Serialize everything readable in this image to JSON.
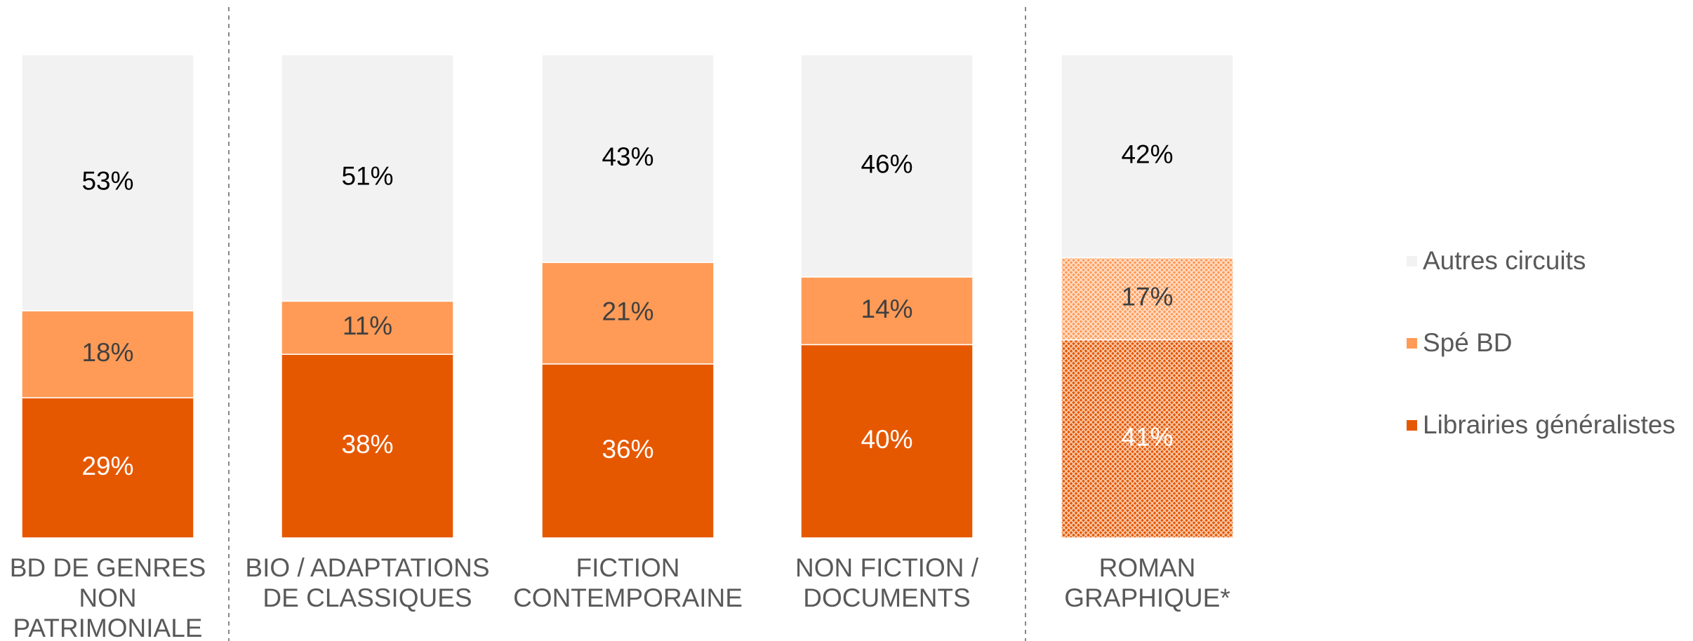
{
  "chart_data": {
    "type": "stacked_bar",
    "categories": [
      "BD DE GENRES NON PATRIMONIALE",
      "BIO / ADAPTATIONS DE CLASSIQUES",
      "FICTION CONTEMPORAINE",
      "NON FICTION / DOCUMENTS",
      "ROMAN GRAPHIQUE*"
    ],
    "ylim": [
      0,
      100
    ],
    "hatched": [
      false,
      false,
      false,
      false,
      true
    ],
    "series": [
      {
        "name": "Librairies généralistes",
        "color": "#e65800",
        "label_color": "#ffffff",
        "values": [
          29,
          38,
          36,
          40,
          41
        ],
        "value_labels": [
          "29%",
          "38%",
          "36%",
          "40%",
          "41%"
        ]
      },
      {
        "name": "Spé BD",
        "color": "#ff9b57",
        "label_color": "#404040",
        "values": [
          18,
          11,
          21,
          14,
          17
        ],
        "value_labels": [
          "18%",
          "11%",
          "21%",
          "14%",
          "17%"
        ]
      },
      {
        "name": "Autres circuits",
        "color": "#f2f2f2",
        "label_color": "#000000",
        "values": [
          53,
          51,
          43,
          46,
          42
        ],
        "value_labels": [
          "53%",
          "51%",
          "43%",
          "46%",
          "42%"
        ]
      }
    ],
    "legend": "right"
  }
}
